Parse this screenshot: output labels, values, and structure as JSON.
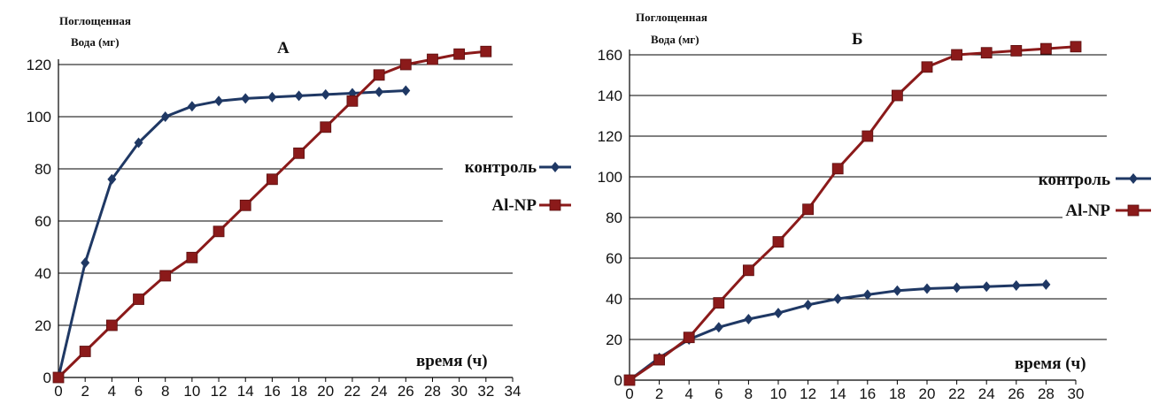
{
  "chart_data": [
    {
      "type": "line",
      "title": "А",
      "ylabel_line1": "Поглощенная",
      "ylabel_line2": "Вода (мг)",
      "xlabel": "время (ч)",
      "xlim": [
        0,
        34
      ],
      "ylim": [
        0,
        120
      ],
      "x_ticks": [
        0,
        2,
        4,
        6,
        8,
        10,
        12,
        14,
        16,
        18,
        20,
        22,
        24,
        26,
        28,
        30,
        32,
        34
      ],
      "y_ticks": [
        0,
        20,
        40,
        60,
        80,
        100,
        120
      ],
      "gridlines": "horizontal",
      "legend_position": "right",
      "series": [
        {
          "name": "контроль",
          "color": "#1f3864",
          "marker": "diamond",
          "x": [
            0,
            2,
            4,
            6,
            8,
            10,
            12,
            14,
            16,
            18,
            20,
            22,
            24,
            26
          ],
          "y": [
            0,
            44,
            76,
            90,
            100,
            104,
            106,
            107,
            107.5,
            108,
            108.5,
            109,
            109.5,
            110
          ]
        },
        {
          "name": "Al-NP",
          "color": "#8b1a1a",
          "marker": "square",
          "x": [
            0,
            2,
            4,
            6,
            8,
            10,
            12,
            14,
            16,
            18,
            20,
            22,
            24,
            26,
            28,
            30,
            32
          ],
          "y": [
            0,
            10,
            20,
            30,
            39,
            46,
            56,
            66,
            76,
            86,
            96,
            106,
            116,
            120,
            122,
            124,
            125
          ]
        }
      ]
    },
    {
      "type": "line",
      "title": "Б",
      "ylabel_line1": "Поглощенная",
      "ylabel_line2": "Вода (мг)",
      "xlabel": "время (ч)",
      "xlim": [
        0,
        30
      ],
      "ylim": [
        0,
        160
      ],
      "x_ticks": [
        0,
        2,
        4,
        6,
        8,
        10,
        12,
        14,
        16,
        18,
        20,
        22,
        24,
        26,
        28,
        30
      ],
      "y_ticks": [
        0,
        20,
        40,
        60,
        80,
        100,
        120,
        140,
        160
      ],
      "gridlines": "horizontal",
      "legend_position": "right",
      "series": [
        {
          "name": "контроль",
          "color": "#1f3864",
          "marker": "diamond",
          "x": [
            0,
            2,
            4,
            6,
            8,
            10,
            12,
            14,
            16,
            18,
            20,
            22,
            24,
            26,
            28
          ],
          "y": [
            0,
            11,
            20,
            26,
            30,
            33,
            37,
            40,
            42,
            44,
            45,
            45.5,
            46,
            46.5,
            47
          ]
        },
        {
          "name": "Al-NP",
          "color": "#8b1a1a",
          "marker": "square",
          "x": [
            0,
            2,
            4,
            6,
            8,
            10,
            12,
            14,
            16,
            18,
            20,
            22,
            24,
            26,
            28,
            30
          ],
          "y": [
            0,
            10,
            21,
            38,
            54,
            68,
            84,
            104,
            120,
            140,
            154,
            160,
            161,
            162,
            163,
            164
          ]
        }
      ]
    }
  ]
}
